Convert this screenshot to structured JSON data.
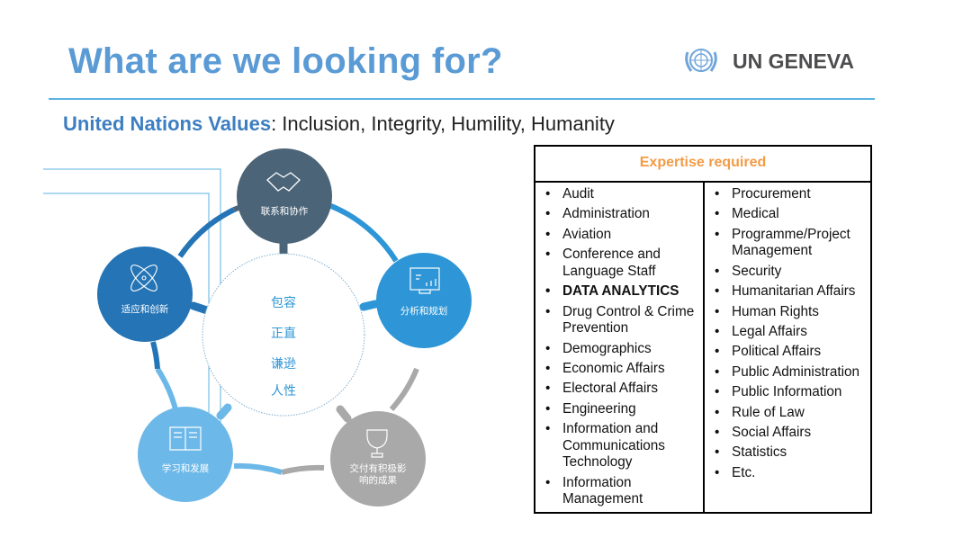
{
  "header": {
    "title": "What are we looking for?",
    "logo_text": "UN GENEVA"
  },
  "values": {
    "label": "United Nations Values",
    "list": ": Inclusion, Integrity, Humility, Humanity"
  },
  "diagram": {
    "center": [
      "包容",
      "正直",
      "谦逊",
      "人性"
    ],
    "nodes": [
      {
        "label": "联系和协作",
        "icon": "handshake-icon",
        "color": "#4b6478"
      },
      {
        "label": "分析和规划",
        "icon": "monitor-chart-icon",
        "color": "#2e96d6"
      },
      {
        "label": "交付有积极影",
        "label2": "响的成果",
        "icon": "trophy-icon",
        "color": "#a9a9a9"
      },
      {
        "label": "学习和发展",
        "icon": "book-icon",
        "color": "#6cb8e8"
      },
      {
        "label": "适应和创新",
        "icon": "atom-icon",
        "color": "#2474b6"
      }
    ]
  },
  "table": {
    "header": "Expertise required",
    "col1": [
      {
        "t": "Audit"
      },
      {
        "t": "Administration"
      },
      {
        "t": "Aviation"
      },
      {
        "t": "Conference and Language Staff"
      },
      {
        "t": "DATA ANALYTICS",
        "bold": true
      },
      {
        "t": "Drug Control & Crime Prevention"
      },
      {
        "t": "Demographics"
      },
      {
        "t": "Economic Affairs"
      },
      {
        "t": "Electoral Affairs"
      },
      {
        "t": "Engineering"
      },
      {
        "t": "Information and Communications Technology"
      },
      {
        "t": "Information Management"
      }
    ],
    "col2": [
      {
        "t": "Procurement"
      },
      {
        "t": "Medical"
      },
      {
        "t": "Programme/Project Management"
      },
      {
        "t": "Security"
      },
      {
        "t": "Humanitarian Affairs"
      },
      {
        "t": "Human Rights"
      },
      {
        "t": "Legal Affairs"
      },
      {
        "t": "Political Affairs"
      },
      {
        "t": "Public Administration"
      },
      {
        "t": "Public Information"
      },
      {
        "t": "Rule of Law"
      },
      {
        "t": "Social Affairs"
      },
      {
        "t": "Statistics"
      },
      {
        "t": "Etc."
      }
    ]
  }
}
